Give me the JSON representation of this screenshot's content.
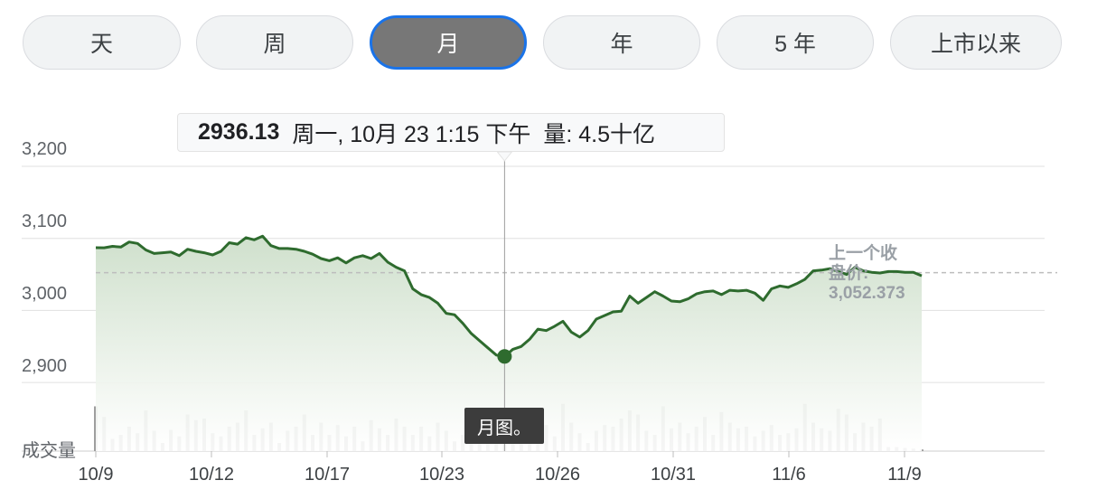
{
  "tabs": [
    {
      "label": "天",
      "active": false
    },
    {
      "label": "周",
      "active": false
    },
    {
      "label": "月",
      "active": true
    },
    {
      "label": "年",
      "active": false
    },
    {
      "label": "5 年",
      "active": false
    },
    {
      "label": "上市以来",
      "active": false
    }
  ],
  "tooltip": {
    "value": "2936.13",
    "datetime": "周一, 10月 23 1:15 下午",
    "volume": "量: 4.5十亿"
  },
  "previous_close": {
    "label_line1": "上一个收",
    "label_line2": "盘价:",
    "value": "3,052.373"
  },
  "caption": "月图。",
  "volume_label": "成交量",
  "colors": {
    "line": "#2e6b2e",
    "fill_top": "#cfe0cc",
    "tab_active": "#777777",
    "tab_active_border": "#1a73e8",
    "grid": "#e0e0e0",
    "ref_line": "#bdbdbd"
  },
  "chart_data": {
    "type": "line",
    "title": "",
    "xlabel": "",
    "ylabel": "",
    "y_tick_labels": [
      "3,200",
      "3,100",
      "3,000",
      "2,900"
    ],
    "y_ticks": [
      3200,
      3100,
      3000,
      2900
    ],
    "ylim": [
      2800,
      3220
    ],
    "x_tick_labels": [
      "10/9",
      "10/12",
      "10/17",
      "10/23",
      "10/26",
      "10/31",
      "11/6",
      "11/9"
    ],
    "grid": true,
    "previous_close": 3052.373,
    "highlight": {
      "x": "10/23",
      "y": 2936.13,
      "volume": "4.5十亿"
    },
    "series": [
      {
        "values": [
          3087,
          3087,
          3089,
          3088,
          3095,
          3093,
          3084,
          3079,
          3080,
          3081,
          3076,
          3085,
          3082,
          3080,
          3077,
          3082,
          3094,
          3092,
          3101,
          3098,
          3103,
          3090,
          3086,
          3086,
          3085,
          3082,
          3078,
          3072,
          3069,
          3073,
          3066,
          3073,
          3076,
          3072,
          3079,
          3067,
          3060,
          3055,
          3030,
          3022,
          3018,
          3010,
          2996,
          2994,
          2982,
          2968,
          2958,
          2948,
          2938,
          2936,
          2946,
          2950,
          2960,
          2974,
          2972,
          2978,
          2985,
          2970,
          2963,
          2972,
          2988,
          2993,
          2998,
          2999,
          3020,
          3010,
          3018,
          3026,
          3020,
          3013,
          3012,
          3016,
          3023,
          3026,
          3027,
          3022,
          3028,
          3027,
          3028,
          3024,
          3014,
          3030,
          3034,
          3032,
          3037,
          3043,
          3055,
          3056,
          3058,
          3054,
          3050,
          3060,
          3055,
          3053,
          3052,
          3054,
          3054,
          3053,
          3053,
          3048
        ]
      }
    ],
    "volume": [
      0.55,
      0.42,
      0.15,
      0.2,
      0.3,
      0.22,
      0.5,
      0.25,
      0.1,
      0.26,
      0.18,
      0.45,
      0.38,
      0.4,
      0.22,
      0.18,
      0.3,
      0.35,
      0.5,
      0.2,
      0.28,
      0.35,
      0.1,
      0.25,
      0.3,
      0.45,
      0.2,
      0.35,
      0.2,
      0.32,
      0.18,
      0.3,
      0.12,
      0.38,
      0.28,
      0.2,
      0.4,
      0.3,
      0.2,
      0.3,
      0.18,
      0.35,
      0.25,
      0.12,
      0.2,
      0.38,
      0.25,
      0.22,
      0.42,
      0.2,
      0.3,
      0.48,
      0.25,
      0.4,
      0.32,
      0.18,
      0.58,
      0.35,
      0.22,
      0.1,
      0.25,
      0.32,
      0.3,
      0.4,
      0.5,
      0.45,
      0.25,
      0.2,
      0.55,
      0.28,
      0.35,
      0.22,
      0.3,
      0.42,
      0.2,
      0.48,
      0.35,
      0.28,
      0.3,
      0.18,
      0.25,
      0.32,
      0.2,
      0.22,
      0.28,
      0.58,
      0.35,
      0.28,
      0.25,
      0.52,
      0.45,
      0.22,
      0.35,
      0.3,
      0.4,
      0.05,
      0.05,
      0.04,
      0.03,
      0.02
    ]
  }
}
